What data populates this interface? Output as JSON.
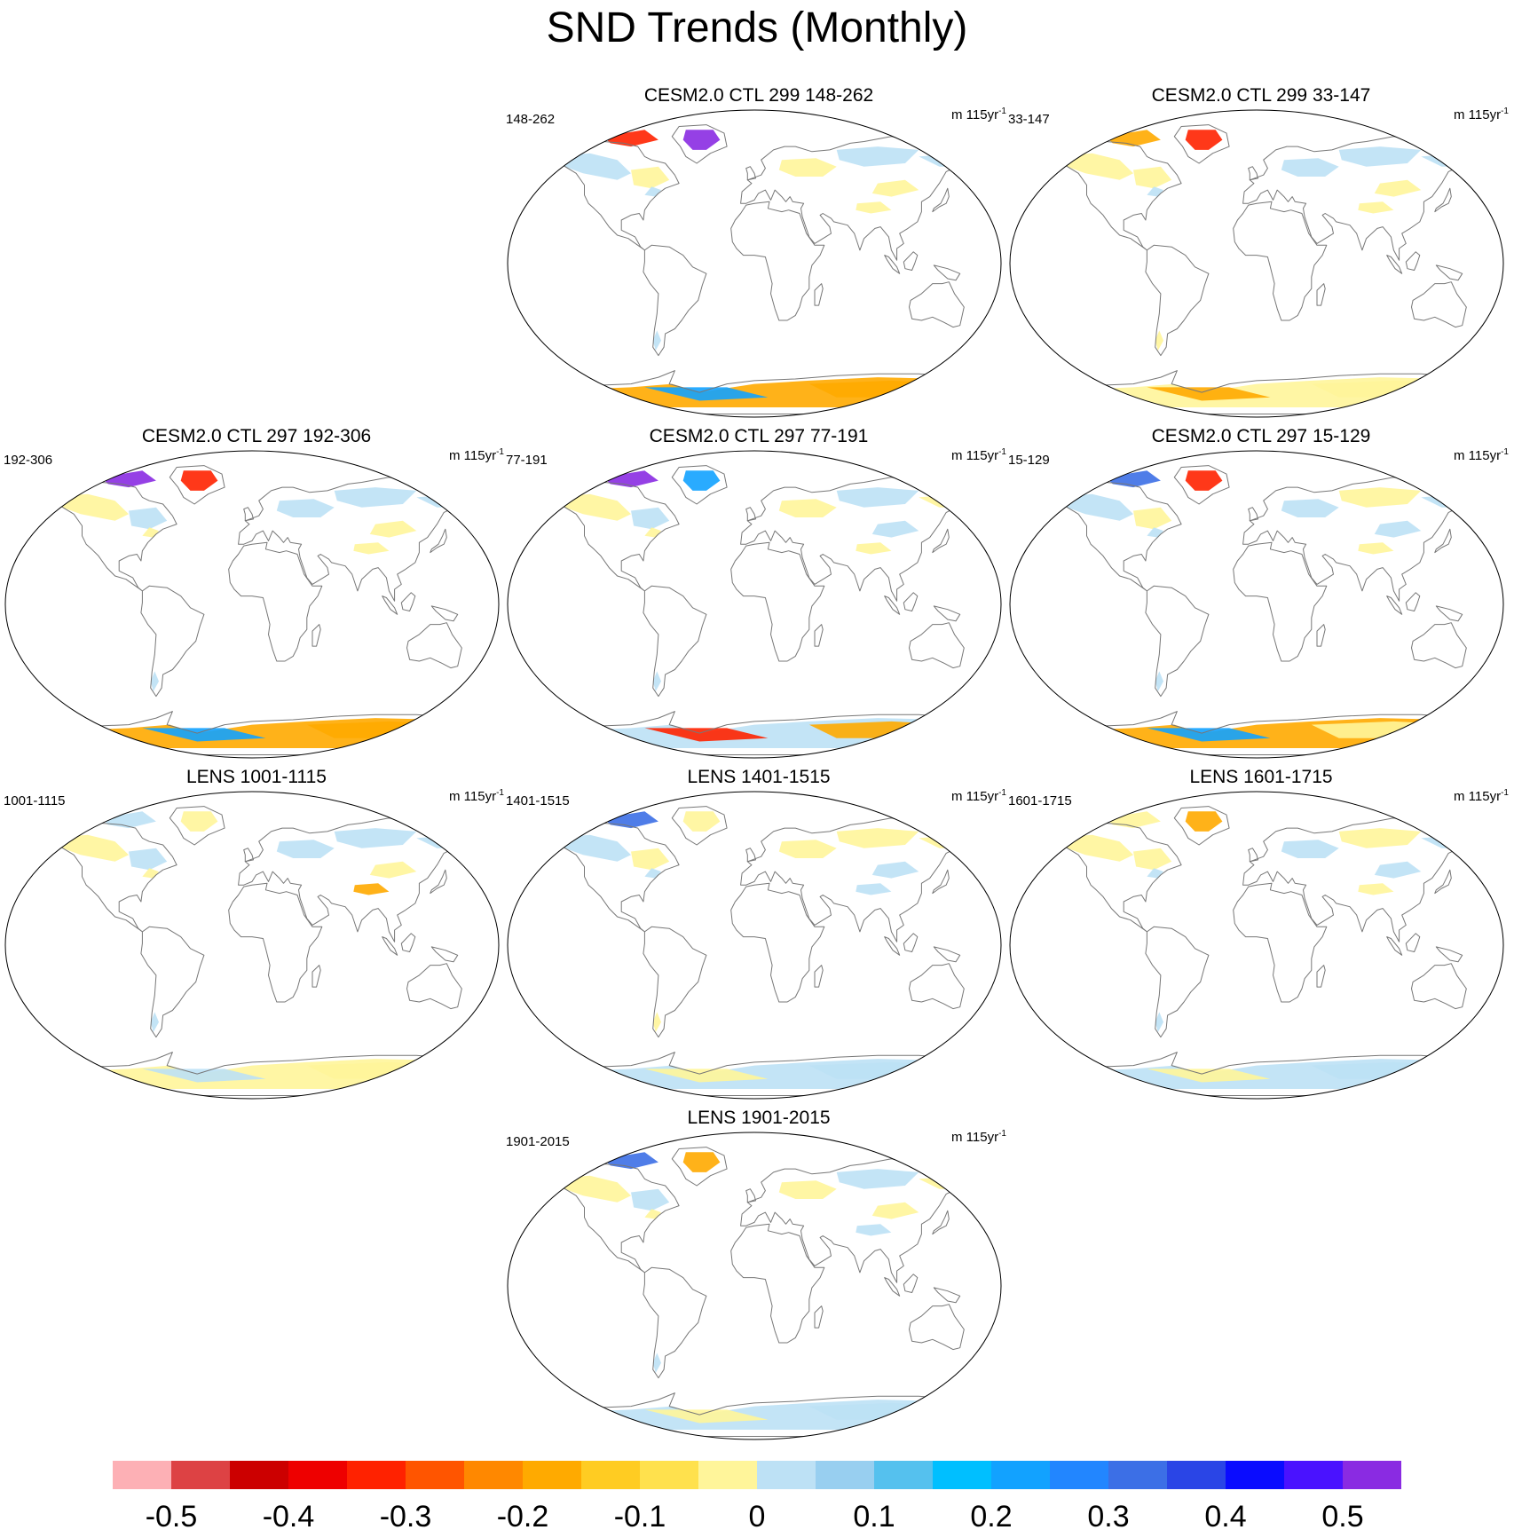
{
  "title": "SND Trends (Monthly)",
  "colors": {
    "outline": "#000000",
    "coast": "#777777",
    "bins": [
      "#fdb0b5",
      "#dd4244",
      "#cc0000",
      "#ee0000",
      "#ff2200",
      "#ff5500",
      "#ff8800",
      "#ffaa00",
      "#ffcc22",
      "#ffe14d",
      "#fff59a",
      "#bde1f5",
      "#98cff0",
      "#55c1ee",
      "#00bfff",
      "#12a2ff",
      "#2286ff",
      "#3c6fe6",
      "#2a45e6",
      "#0a0cff",
      "#4a12ff",
      "#8a2be2"
    ]
  },
  "chart_data": {
    "type": "map-panels",
    "variable": "SND",
    "units": "m 115yr",
    "units_exponent": "-1",
    "colorbar": {
      "tick_labels": [
        "-0.5",
        "-0.4",
        "-0.3",
        "-0.2",
        "-0.1",
        "0",
        "0.1",
        "0.2",
        "0.3",
        "0.4",
        "0.5"
      ]
    },
    "panels": [
      {
        "title": "CESM2.0 CTL 299 148-262",
        "left_label": "148-262",
        "units": "m 115yr",
        "exp": "-1"
      },
      {
        "title": "CESM2.0 CTL 299 33-147",
        "left_label": "33-147",
        "units": "m 115yr",
        "exp": "-1"
      },
      {
        "title": "CESM2.0 CTL 297 192-306",
        "left_label": "192-306",
        "units": "m 115yr",
        "exp": "-1"
      },
      {
        "title": "CESM2.0 CTL 297 77-191",
        "left_label": "77-191",
        "units": "m 115yr",
        "exp": "-1"
      },
      {
        "title": "CESM2.0 CTL 297 15-129",
        "left_label": "15-129",
        "units": "m 115yr",
        "exp": "-1"
      },
      {
        "title": "LENS 1001-1115",
        "left_label": "1001-1115",
        "units": "m 115yr",
        "exp": "-1"
      },
      {
        "title": "LENS 1401-1515",
        "left_label": "1401-1515",
        "units": "m 115yr",
        "exp": "-1"
      },
      {
        "title": "LENS 1601-1715",
        "left_label": "1601-1715",
        "units": "m 115yr",
        "exp": "-1"
      },
      {
        "title": "LENS 1901-2015",
        "left_label": "1901-2015",
        "units": "m 115yr",
        "exp": "-1"
      }
    ]
  }
}
